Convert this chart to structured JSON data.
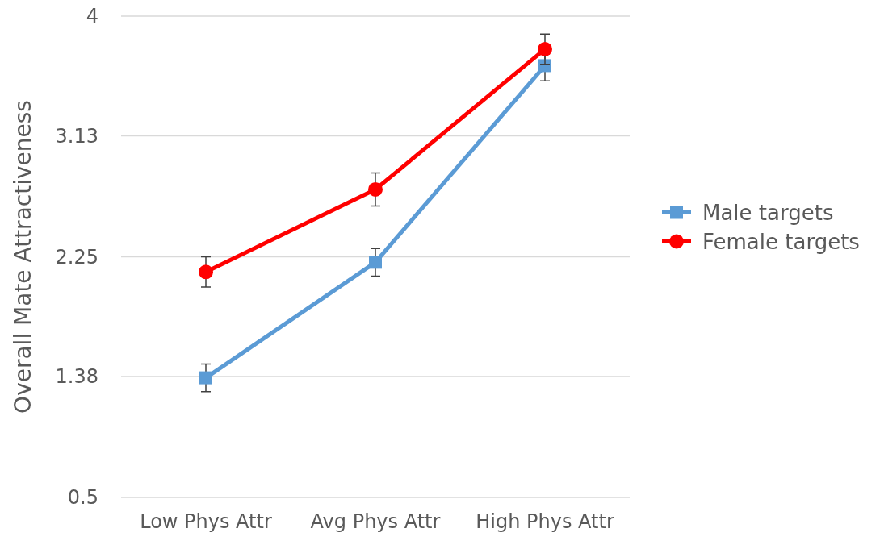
{
  "chart_data": {
    "type": "line",
    "ylabel": "Overall Mate Attractiveness",
    "categories": [
      "Low Phys Attr",
      "Avg Phys Attr",
      "High Phys Attr"
    ],
    "series": [
      {
        "name": "Male targets",
        "color": "#5b9bd5",
        "marker": "square",
        "values": [
          1.37,
          2.21,
          3.64
        ],
        "errors": [
          0.1,
          0.1,
          0.11
        ]
      },
      {
        "name": "Female targets",
        "color": "#ff0000",
        "marker": "circle",
        "values": [
          2.14,
          2.74,
          3.76
        ],
        "errors": [
          0.11,
          0.12,
          0.11
        ]
      }
    ],
    "ylim": [
      0.5,
      4
    ],
    "yticks": [
      0.5,
      1.38,
      2.25,
      3.13,
      4
    ],
    "grid": "y",
    "legend": "right"
  }
}
